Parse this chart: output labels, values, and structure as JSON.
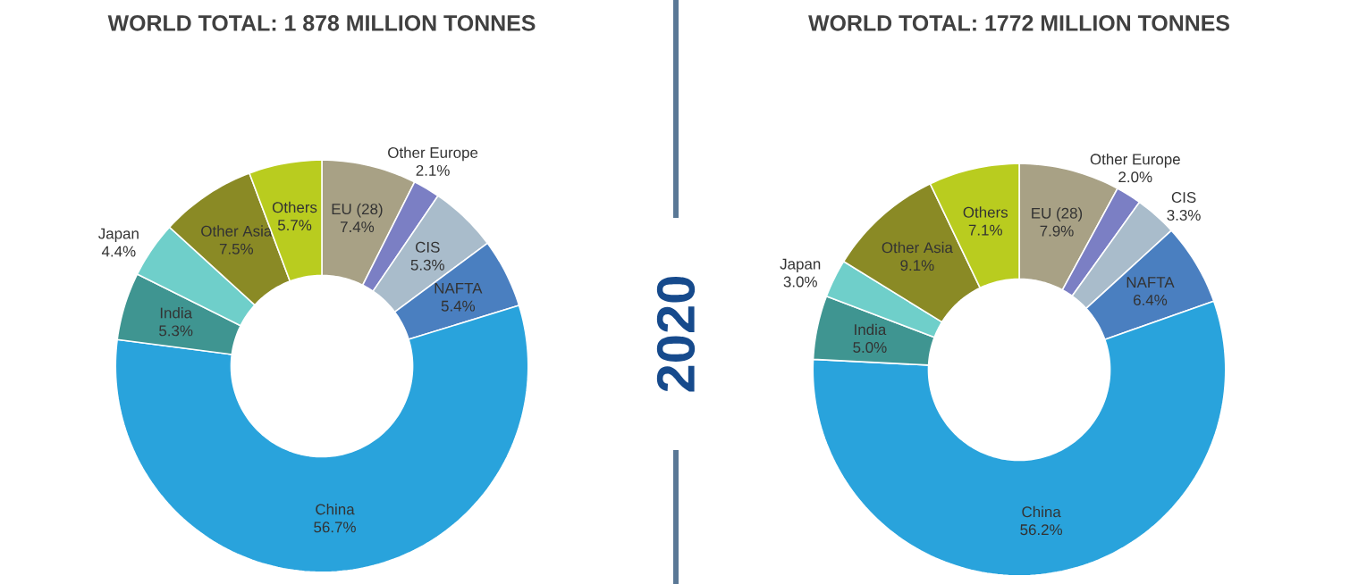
{
  "chart_data": [
    {
      "type": "donut",
      "title": "WORLD TOTAL: 1 878 MILLION TONNES",
      "categories": [
        "EU (28)",
        "Other Europe",
        "CIS",
        "NAFTA",
        "China",
        "India",
        "Japan",
        "Other Asia",
        "Others"
      ],
      "values": [
        7.4,
        2.1,
        5.3,
        5.4,
        56.7,
        5.3,
        4.4,
        7.5,
        5.7
      ],
      "value_labels": [
        "7.4%",
        "2.1%",
        "5.3%",
        "5.4%",
        "56.7%",
        "5.3%",
        "4.4%",
        "7.5%",
        "5.7%"
      ],
      "colors": [
        "#a8a185",
        "#7b7fc4",
        "#a9bccb",
        "#4a7fc0",
        "#29a3dc",
        "#3f9591",
        "#6fcfca",
        "#8a8a25",
        "#b9cc1f"
      ]
    },
    {
      "type": "donut",
      "title": "WORLD TOTAL: 1772 MILLION TONNES",
      "categories": [
        "EU (28)",
        "Other Europe",
        "CIS",
        "NAFTA",
        "China",
        "India",
        "Japan",
        "Other Asia",
        "Others"
      ],
      "values": [
        7.9,
        2.0,
        3.3,
        6.4,
        56.2,
        5.0,
        3.0,
        9.1,
        7.1
      ],
      "value_labels": [
        "7.9%",
        "2.0%",
        "3.3%",
        "6.4%",
        "56.2%",
        "5.0%",
        "3.0%",
        "9.1%",
        "7.1%"
      ],
      "colors": [
        "#a8a185",
        "#7b7fc4",
        "#a9bccb",
        "#4a7fc0",
        "#29a3dc",
        "#3f9591",
        "#6fcfca",
        "#8a8a25",
        "#b9cc1f"
      ],
      "annotations": [
        "2020"
      ]
    }
  ]
}
